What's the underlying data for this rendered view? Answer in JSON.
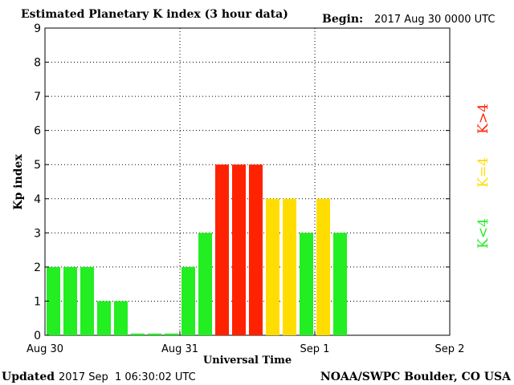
{
  "header": {
    "title": "Estimated Planetary K index (3 hour data)",
    "begin_label": "Begin:",
    "begin_value": "2017 Aug 30 0000 UTC"
  },
  "footer": {
    "updated_label": "Updated",
    "updated_value": "2017 Sep  1 06:30:02 UTC",
    "source": "NOAA/SWPC Boulder, CO USA"
  },
  "chart_data": {
    "type": "bar",
    "title": "Estimated Planetary K index (3 hour data)",
    "xlabel": "Universal Time",
    "ylabel": "Kp index",
    "ylim": [
      0,
      9
    ],
    "yticks": [
      "0",
      "1",
      "2",
      "3",
      "4",
      "5",
      "6",
      "7",
      "8",
      "9"
    ],
    "xticks": [
      "Aug 30",
      "Aug 31",
      "Sep 1",
      "Sep 2"
    ],
    "interval_hours": 3,
    "values": [
      2,
      2,
      2,
      1,
      1,
      0.05,
      0.05,
      0.05,
      2,
      3,
      5,
      5,
      5,
      4,
      4,
      3,
      4,
      3
    ],
    "grid": true,
    "color_scale": {
      "below": {
        "label": "K<4",
        "color": "#22ee22"
      },
      "equal": {
        "label": "K=4",
        "color": "#ffdd00"
      },
      "above": {
        "label": "K>4",
        "color": "#ff2200"
      }
    }
  }
}
